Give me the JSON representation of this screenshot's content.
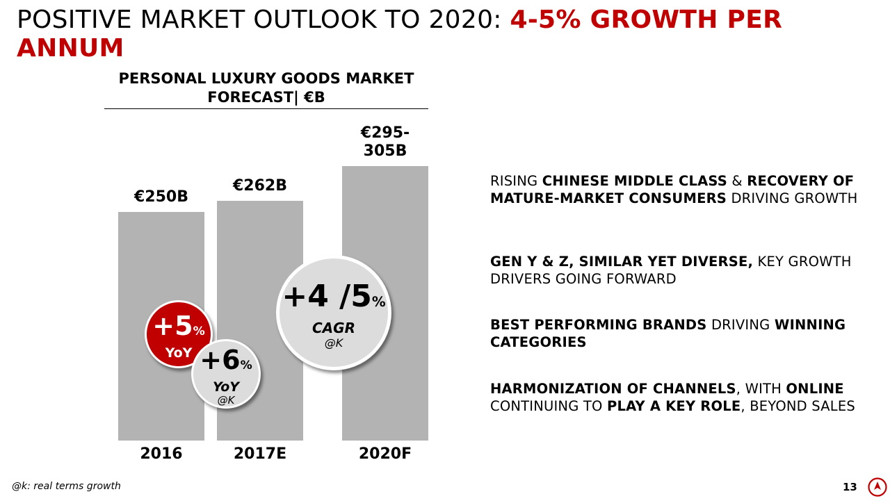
{
  "slide": {
    "title_main": "POSITIVE MARKET OUTLOOK TO 2020: ",
    "title_accent": "4-5% GROWTH PER ANNUM",
    "page_number": "13",
    "footnote": "@k: real terms growth",
    "accent_color": "#c00000",
    "bar_color": "#b3b3b3"
  },
  "chart_data": {
    "type": "bar",
    "title": "PERSONAL LUXURY GOODS MARKET FORECAST| €B",
    "categories": [
      "2016",
      "2017E",
      "2020F"
    ],
    "values": [
      250,
      262,
      300
    ],
    "value_labels": [
      "€250B",
      "€262B",
      "€295-305B"
    ],
    "ylim": [
      0,
      300
    ],
    "grid": false,
    "annotations": [
      {
        "value": "+5",
        "unit": "%",
        "label": "YoY",
        "note": ""
      },
      {
        "value": "+6",
        "unit": "%",
        "label": "YoY",
        "note": "@K"
      },
      {
        "value": "+4 /5",
        "unit": "%",
        "label": "CAGR",
        "note": "@K"
      }
    ]
  },
  "points": [
    {
      "parts": [
        {
          "t": "RISING ",
          "b": false
        },
        {
          "t": "CHINESE MIDDLE CLASS",
          "b": true
        },
        {
          "t": " & ",
          "b": false
        },
        {
          "t": "RECOVERY OF MATURE-MARKET CONSUMERS",
          "b": true
        },
        {
          "t": " DRIVING GROWTH",
          "b": false
        }
      ]
    },
    {
      "parts": [
        {
          "t": "GEN Y & Z, SIMILAR YET DIVERSE,",
          "b": true
        },
        {
          "t": " KEY GROWTH DRIVERS GOING FORWARD",
          "b": false
        }
      ]
    },
    {
      "parts": [
        {
          "t": "BEST PERFORMING BRANDS",
          "b": true
        },
        {
          "t": " DRIVING ",
          "b": false
        },
        {
          "t": "WINNING CATEGORIES",
          "b": true
        }
      ]
    },
    {
      "parts": [
        {
          "t": "HARMONIZATION OF CHANNELS",
          "b": true
        },
        {
          "t": ", WITH ",
          "b": false
        },
        {
          "t": "ONLINE",
          "b": true
        },
        {
          "t": " CONTINUING TO ",
          "b": false
        },
        {
          "t": "PLAY A KEY ROLE",
          "b": true
        },
        {
          "t": ", BEYOND SALES",
          "b": false
        }
      ]
    }
  ]
}
